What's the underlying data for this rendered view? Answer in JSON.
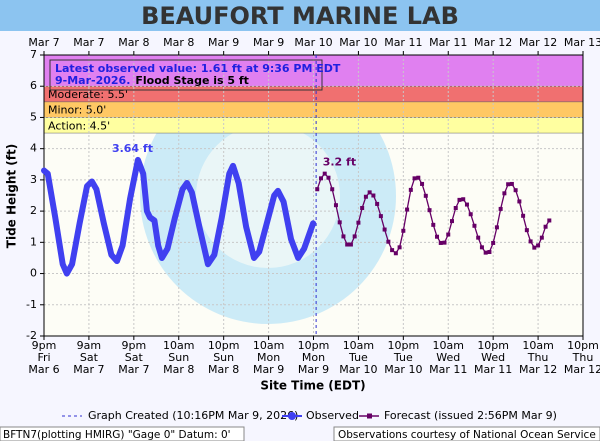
{
  "chart_data": {
    "type": "line",
    "title": "BEAUFORT MARINE LAB",
    "ylabel": "Tide Height (ft)",
    "xlabel": "Site Time (EDT)",
    "xlim": [
      0,
      144
    ],
    "ylim": [
      -2,
      7
    ],
    "yticks": [
      -2,
      -1,
      0,
      1,
      2,
      3,
      4,
      5,
      6,
      7
    ],
    "grid": true,
    "xticks": [
      {
        "value": 0,
        "label": [
          "9pm",
          "Fri",
          "Mar 6"
        ]
      },
      {
        "value": 12,
        "label": [
          "9am",
          "Sat",
          "Mar 7"
        ]
      },
      {
        "value": 24,
        "label": [
          "9pm",
          "Sat",
          "Mar 7"
        ]
      },
      {
        "value": 36,
        "label": [
          "10am",
          "Sun",
          "Mar 8"
        ]
      },
      {
        "value": 48,
        "label": [
          "10pm",
          "Sun",
          "Mar 8"
        ]
      },
      {
        "value": 60,
        "label": [
          "10am",
          "Mon",
          "Mar 9"
        ]
      },
      {
        "value": 72,
        "label": [
          "10pm",
          "Mon",
          "Mar 9"
        ]
      },
      {
        "value": 84,
        "label": [
          "10am",
          "Tue",
          "Mar 10"
        ]
      },
      {
        "value": 96,
        "label": [
          "10pm",
          "Tue",
          "Mar 10"
        ]
      },
      {
        "value": 108,
        "label": [
          "10am",
          "Wed",
          "Mar 11"
        ]
      },
      {
        "value": 120,
        "label": [
          "10pm",
          "Wed",
          "Mar 11"
        ]
      },
      {
        "value": 132,
        "label": [
          "10am",
          "Thu",
          "Mar 12"
        ]
      },
      {
        "value": 144,
        "label": [
          "10pm",
          "Thu",
          "Mar 12"
        ]
      }
    ],
    "top_xticks": [
      {
        "value": 0,
        "label": "Mar 7"
      },
      {
        "value": 12,
        "label": "Mar 7"
      },
      {
        "value": 24,
        "label": "Mar 8"
      },
      {
        "value": 36,
        "label": "Mar 8"
      },
      {
        "value": 48,
        "label": "Mar 9"
      },
      {
        "value": 60,
        "label": "Mar 9"
      },
      {
        "value": 72,
        "label": "Mar 10"
      },
      {
        "value": 84,
        "label": "Mar 10"
      },
      {
        "value": 96,
        "label": "Mar 11"
      },
      {
        "value": 108,
        "label": "Mar 11"
      },
      {
        "value": 120,
        "label": "Mar 12"
      },
      {
        "value": 132,
        "label": "Mar 12"
      },
      {
        "value": 144,
        "label": "Mar 13"
      }
    ],
    "flood_stages": [
      {
        "value": 4.5,
        "label": "Action: 4.5'",
        "color": "#ffffa0"
      },
      {
        "value": 5,
        "label": "Minor: 5.0'",
        "color": "#ffc864"
      },
      {
        "value": 5.5,
        "label": "Moderate: 5.5'",
        "color": "#f07070"
      },
      {
        "value": 6,
        "color": "#e080f0"
      }
    ],
    "latest_note": [
      "Latest observed value: 1.61 ft at 9:36 PM EDT",
      "9-Mar-2026.",
      "Flood Stage is 5 ft"
    ],
    "created_x": 72.7,
    "created_label": "Graph Created (10:16PM Mar 9, 2026)",
    "series": [
      {
        "name": "Observed",
        "color": "#4040f0",
        "peak_label": "3.64 ft",
        "x": [
          0,
          1,
          3,
          5,
          6.1,
          7.5,
          9.5,
          11.5,
          12.8,
          14,
          16,
          18,
          19.5,
          21,
          23,
          25.1,
          26.5,
          27.5,
          28.3,
          29.5,
          30.5,
          31.5,
          33,
          35,
          37,
          38.2,
          39.5,
          41.5,
          43.8,
          45.5,
          47.5,
          49.5,
          50.5,
          52,
          54,
          56.1,
          57.5,
          59.5,
          61.5,
          62.5,
          64,
          66,
          67.9,
          69.5,
          71.9
        ],
        "values": [
          3.3,
          3.2,
          1.8,
          0.3,
          0.0,
          0.3,
          1.6,
          2.8,
          2.95,
          2.7,
          1.6,
          0.6,
          0.4,
          0.9,
          2.4,
          3.64,
          3.2,
          2.0,
          1.8,
          1.7,
          0.9,
          0.5,
          0.8,
          1.8,
          2.7,
          2.9,
          2.6,
          1.5,
          0.3,
          0.6,
          1.8,
          3.2,
          3.45,
          2.9,
          1.5,
          0.5,
          0.7,
          1.6,
          2.5,
          2.65,
          2.3,
          1.1,
          0.5,
          0.8,
          1.61
        ]
      },
      {
        "name": "Forecast (issued 2:56PM Mar 9)",
        "color": "#660066",
        "peak_label": "3.2 ft",
        "x": [
          73,
          74,
          75,
          76,
          77,
          78,
          79,
          80,
          81,
          82,
          83,
          84,
          85,
          86,
          87,
          88,
          89,
          90,
          91,
          92,
          93,
          94,
          95,
          96,
          97,
          98,
          99,
          100,
          101,
          102,
          103,
          104,
          105,
          106,
          107,
          108,
          109,
          110,
          111,
          112,
          113,
          114,
          115,
          116,
          117,
          118,
          119,
          120,
          121,
          122,
          123,
          124,
          125,
          126,
          127,
          128,
          129,
          130,
          131,
          132,
          133,
          134,
          135
        ],
        "values": [
          2.7,
          3.05,
          3.2,
          3.07,
          2.7,
          2.19,
          1.64,
          1.19,
          0.93,
          0.93,
          1.19,
          1.63,
          2.1,
          2.46,
          2.6,
          2.5,
          2.23,
          1.84,
          1.41,
          1.02,
          0.75,
          0.65,
          0.84,
          1.37,
          2.05,
          2.68,
          3.05,
          3.07,
          2.87,
          2.49,
          2.03,
          1.56,
          1.18,
          0.98,
          0.99,
          1.25,
          1.68,
          2.1,
          2.36,
          2.38,
          2.21,
          1.9,
          1.53,
          1.15,
          0.84,
          0.67,
          0.69,
          0.98,
          1.48,
          2.07,
          2.57,
          2.86,
          2.87,
          2.67,
          2.31,
          1.85,
          1.39,
          1.03,
          0.83,
          0.9,
          1.15,
          1.5,
          1.7
        ]
      }
    ],
    "footer_left": "BFTN7(plotting HMIRG) \"Gage 0\" Datum: 0'",
    "footer_right": "Observations courtesy of National Ocean Service"
  }
}
